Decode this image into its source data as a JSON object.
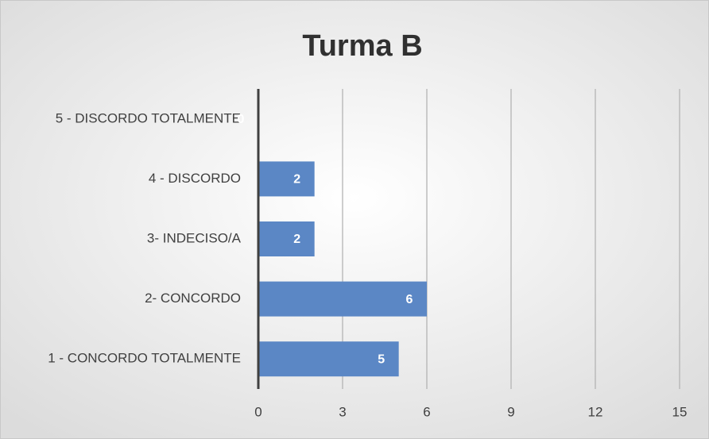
{
  "chart_data": {
    "type": "hbar",
    "title": "Turma B",
    "categories": [
      "5 - DISCORDO TOTALMENTE",
      "4 - DISCORDO",
      "3- INDECISO/A",
      "2- CONCORDO",
      "1 - CONCORDO TOTALMENTE"
    ],
    "values": [
      0,
      2,
      2,
      6,
      5
    ],
    "color": "#5b87c5",
    "xlim": [
      0,
      15
    ],
    "xticks": [
      0,
      3,
      6,
      9,
      12,
      15
    ],
    "grid": true
  }
}
